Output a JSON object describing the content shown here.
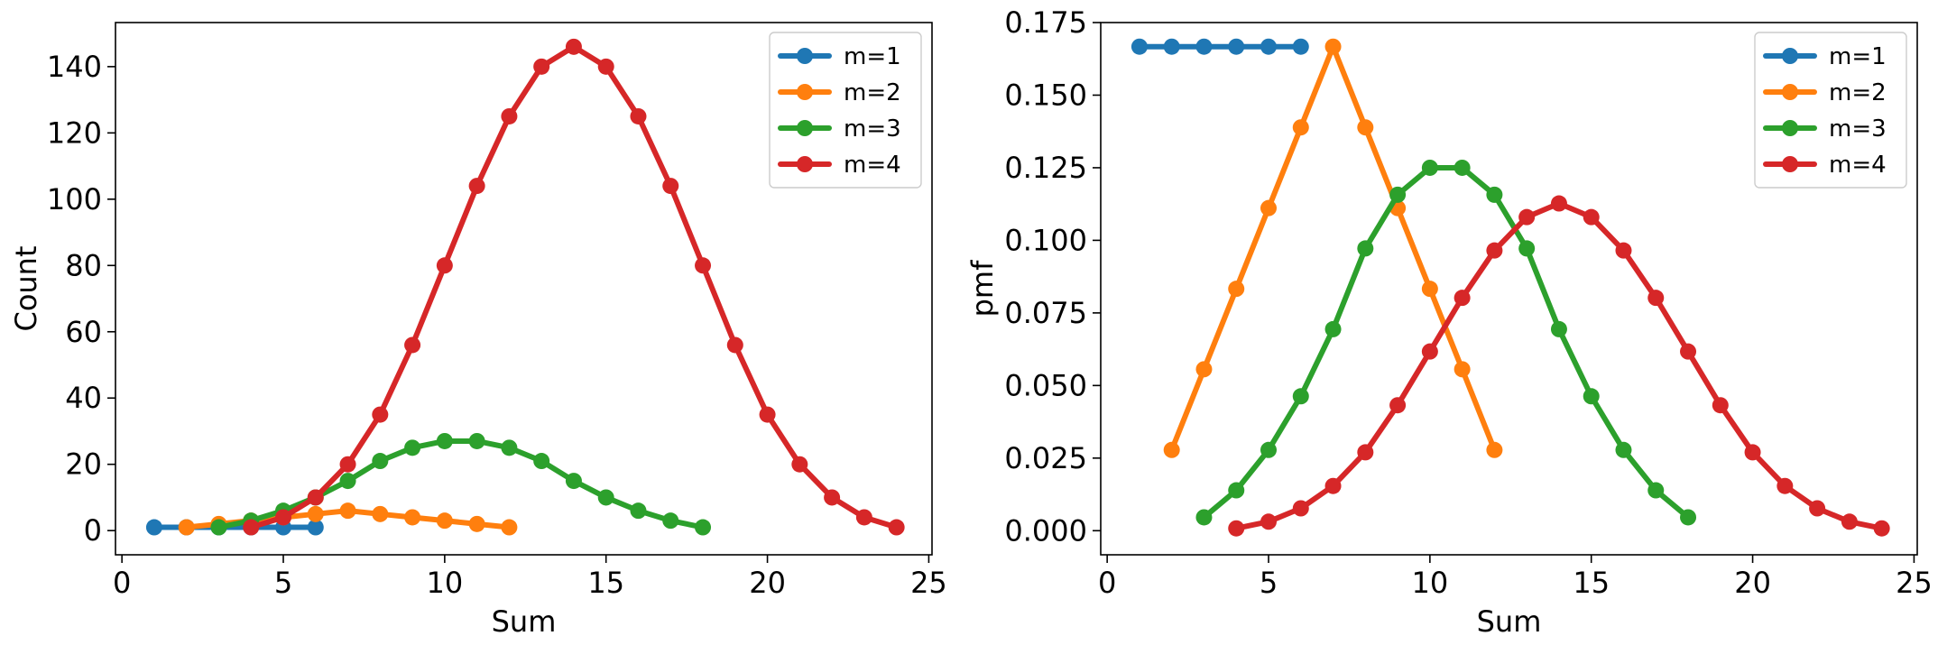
{
  "colors": {
    "m1": "#1f77b4",
    "m2": "#ff7f0e",
    "m3": "#2ca02c",
    "m4": "#d62728"
  },
  "chart_data": [
    {
      "type": "line",
      "title": "",
      "xlabel": "Sum",
      "ylabel": "Count",
      "xlim": [
        -0.2,
        25.1
      ],
      "ylim": [
        -7.3,
        153.3
      ],
      "xticks": [
        0,
        5,
        10,
        15,
        20,
        25
      ],
      "yticks": [
        0,
        20,
        40,
        60,
        80,
        100,
        120,
        140
      ],
      "grid": false,
      "legend": "top-right",
      "series": [
        {
          "name": "m=1",
          "color": "#1f77b4",
          "x": [
            1,
            2,
            3,
            4,
            5,
            6
          ],
          "y": [
            1,
            1,
            1,
            1,
            1,
            1
          ]
        },
        {
          "name": "m=2",
          "color": "#ff7f0e",
          "x": [
            2,
            3,
            4,
            5,
            6,
            7,
            8,
            9,
            10,
            11,
            12
          ],
          "y": [
            1,
            2,
            3,
            4,
            5,
            6,
            5,
            4,
            3,
            2,
            1
          ]
        },
        {
          "name": "m=3",
          "color": "#2ca02c",
          "x": [
            3,
            4,
            5,
            6,
            7,
            8,
            9,
            10,
            11,
            12,
            13,
            14,
            15,
            16,
            17,
            18
          ],
          "y": [
            1,
            3,
            6,
            10,
            15,
            21,
            25,
            27,
            27,
            25,
            21,
            15,
            10,
            6,
            3,
            1
          ]
        },
        {
          "name": "m=4",
          "color": "#d62728",
          "x": [
            4,
            5,
            6,
            7,
            8,
            9,
            10,
            11,
            12,
            13,
            14,
            15,
            16,
            17,
            18,
            19,
            20,
            21,
            22,
            23,
            24
          ],
          "y": [
            1,
            4,
            10,
            20,
            35,
            56,
            80,
            104,
            125,
            140,
            146,
            140,
            125,
            104,
            80,
            56,
            35,
            20,
            10,
            4,
            1
          ]
        }
      ]
    },
    {
      "type": "line",
      "title": "",
      "xlabel": "Sum",
      "ylabel": "pmf",
      "xlim": [
        -0.2,
        25.1
      ],
      "ylim": [
        -0.0083,
        0.175
      ],
      "xticks": [
        0,
        5,
        10,
        15,
        20,
        25
      ],
      "yticks": [
        0.0,
        0.025,
        0.05,
        0.075,
        0.1,
        0.125,
        0.15,
        0.175
      ],
      "ytick_decimals": 3,
      "grid": false,
      "legend": "top-right",
      "series": [
        {
          "name": "m=1",
          "color": "#1f77b4",
          "x": [
            1,
            2,
            3,
            4,
            5,
            6
          ],
          "y": [
            0.1667,
            0.1667,
            0.1667,
            0.1667,
            0.1667,
            0.1667
          ]
        },
        {
          "name": "m=2",
          "color": "#ff7f0e",
          "x": [
            2,
            3,
            4,
            5,
            6,
            7,
            8,
            9,
            10,
            11,
            12
          ],
          "y": [
            0.0278,
            0.0556,
            0.0833,
            0.1111,
            0.1389,
            0.1667,
            0.1389,
            0.1111,
            0.0833,
            0.0556,
            0.0278
          ]
        },
        {
          "name": "m=3",
          "color": "#2ca02c",
          "x": [
            3,
            4,
            5,
            6,
            7,
            8,
            9,
            10,
            11,
            12,
            13,
            14,
            15,
            16,
            17,
            18
          ],
          "y": [
            0.0046,
            0.0139,
            0.0278,
            0.0463,
            0.0694,
            0.0972,
            0.1157,
            0.125,
            0.125,
            0.1157,
            0.0972,
            0.0694,
            0.0463,
            0.0278,
            0.0139,
            0.0046
          ]
        },
        {
          "name": "m=4",
          "color": "#d62728",
          "x": [
            4,
            5,
            6,
            7,
            8,
            9,
            10,
            11,
            12,
            13,
            14,
            15,
            16,
            17,
            18,
            19,
            20,
            21,
            22,
            23,
            24
          ],
          "y": [
            0.0008,
            0.0031,
            0.0077,
            0.0154,
            0.027,
            0.0432,
            0.0617,
            0.0802,
            0.0965,
            0.108,
            0.1127,
            0.108,
            0.0965,
            0.0802,
            0.0617,
            0.0432,
            0.027,
            0.0154,
            0.0077,
            0.0031,
            0.0008
          ]
        }
      ]
    }
  ]
}
